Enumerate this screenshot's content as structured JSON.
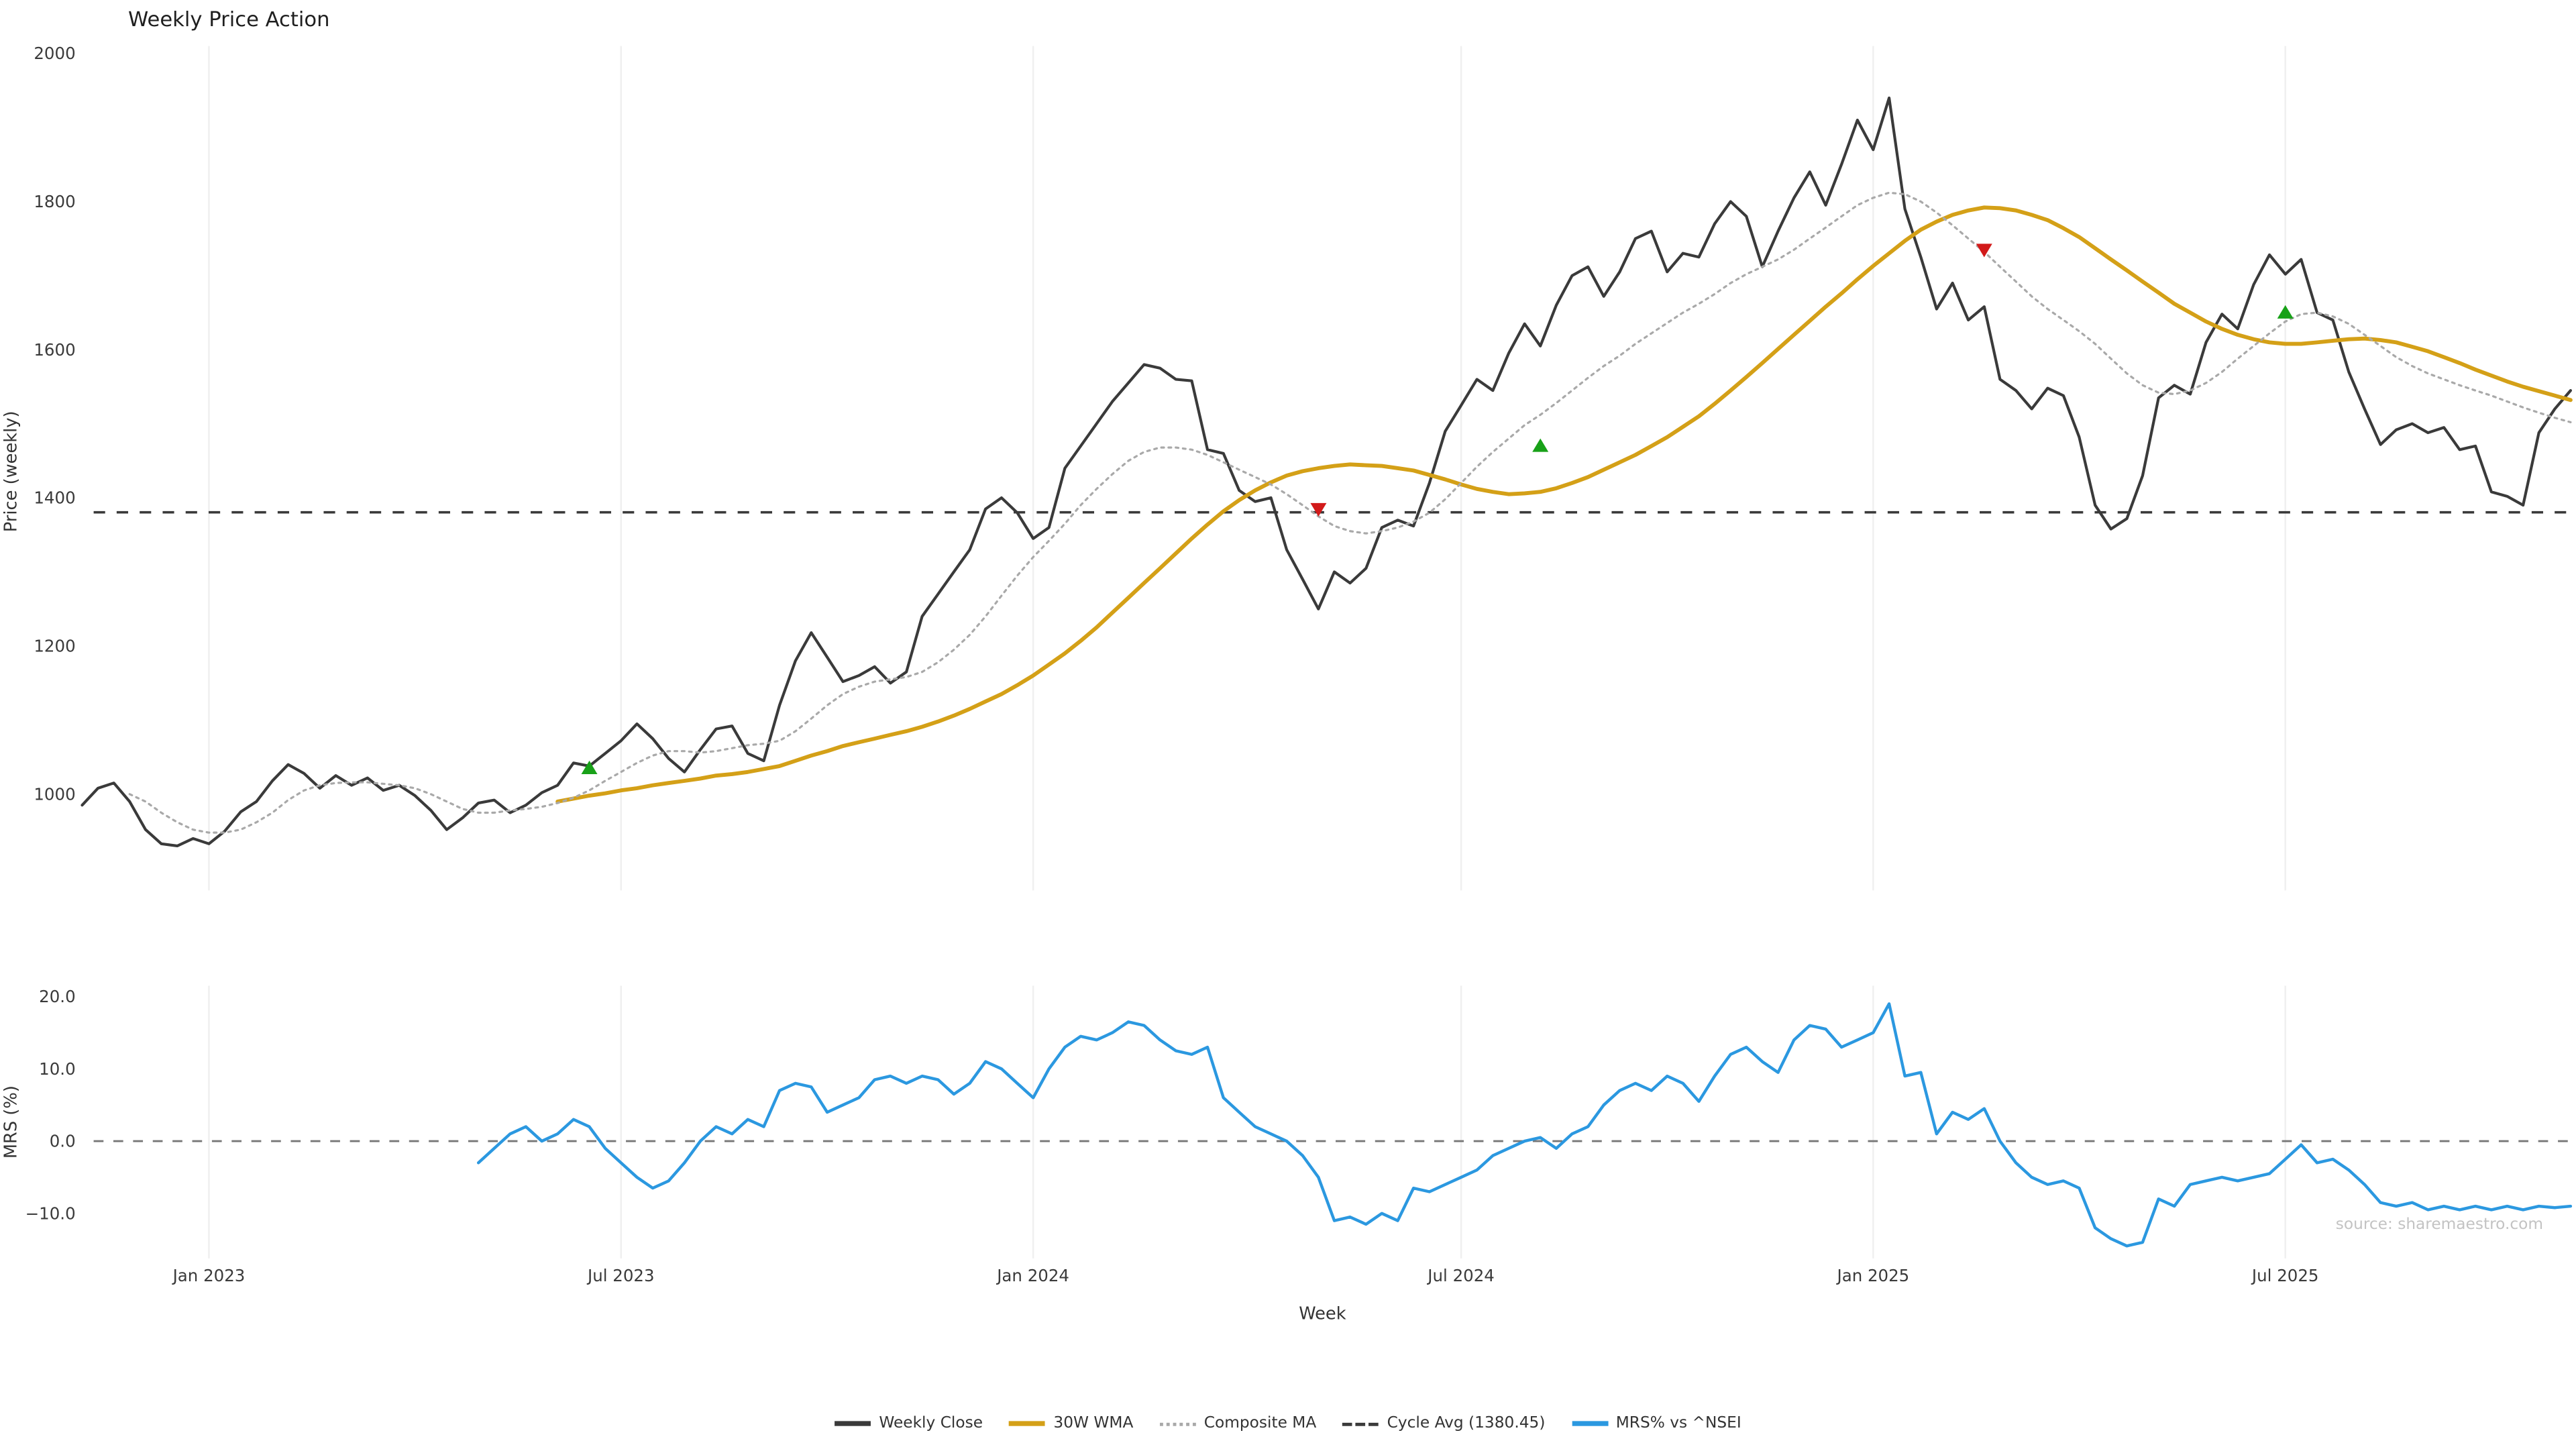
{
  "watermark": "source: sharemaestro.com",
  "legend": [
    {
      "label": "Weekly Close",
      "color": "#3a3a3a",
      "style": "solid"
    },
    {
      "label": "30W WMA",
      "color": "#d4a017",
      "style": "solid"
    },
    {
      "label": "Composite MA",
      "color": "#a9a9a9",
      "style": "dotted"
    },
    {
      "label": "Cycle Avg (1380.45)",
      "color": "#3a3a3a",
      "style": "dashed"
    },
    {
      "label": "MRS% vs ^NSEI",
      "color": "#2b98e0",
      "style": "solid"
    }
  ],
  "chart_data": [
    {
      "type": "line",
      "panel": "price",
      "title": "Weekly Price Action",
      "ylabel": "Price (weekly)",
      "xlabel": "Week",
      "x_unit": "week",
      "ylim": [
        870,
        2010
      ],
      "yticks": [
        1000,
        1200,
        1400,
        1600,
        1800,
        2000
      ],
      "xticks": [
        8,
        34,
        60,
        87,
        113,
        139
      ],
      "xtick_labels": [
        "Jan 2023",
        "Jul 2023",
        "Jan 2024",
        "Jul 2024",
        "Jan 2025",
        "Jul 2025"
      ],
      "grid": "vertical-light",
      "cycle_avg": 1380.45,
      "cycle_color": "#3a3a3a",
      "series": [
        {
          "name": "Weekly Close",
          "color": "#3a3a3a",
          "style": "solid",
          "width": 1.7,
          "start_week": 0,
          "values": [
            985,
            1008,
            1015,
            990,
            952,
            933,
            930,
            940,
            933,
            950,
            976,
            990,
            1018,
            1040,
            1028,
            1008,
            1025,
            1012,
            1022,
            1005,
            1012,
            998,
            978,
            952,
            968,
            988,
            992,
            975,
            985,
            1002,
            1012,
            1042,
            1038,
            1055,
            1072,
            1095,
            1075,
            1048,
            1030,
            1060,
            1088,
            1092,
            1055,
            1045,
            1120,
            1180,
            1218,
            1185,
            1152,
            1160,
            1172,
            1150,
            1165,
            1240,
            1270,
            1300,
            1330,
            1385,
            1400,
            1380,
            1345,
            1360,
            1440,
            1470,
            1500,
            1530,
            1555,
            1580,
            1575,
            1560,
            1558,
            1465,
            1460,
            1410,
            1395,
            1400,
            1330,
            1290,
            1250,
            1300,
            1285,
            1305,
            1360,
            1370,
            1362,
            1420,
            1490,
            1525,
            1560,
            1545,
            1595,
            1635,
            1605,
            1660,
            1700,
            1712,
            1672,
            1705,
            1750,
            1760,
            1705,
            1730,
            1725,
            1770,
            1800,
            1780,
            1712,
            1760,
            1805,
            1840,
            1795,
            1850,
            1910,
            1870,
            1940,
            1790,
            1725,
            1655,
            1690,
            1640,
            1658,
            1560,
            1545,
            1520,
            1548,
            1538,
            1482,
            1390,
            1358,
            1372,
            1430,
            1535,
            1552,
            1540,
            1610,
            1648,
            1628,
            1688,
            1728,
            1702,
            1722,
            1650,
            1640,
            1570,
            1520,
            1472,
            1492,
            1500,
            1488,
            1495,
            1465,
            1470,
            1408,
            1402,
            1390,
            1488,
            1520,
            1545
          ]
        },
        {
          "name": "30W WMA",
          "color": "#d4a017",
          "style": "solid",
          "width": 2.4,
          "start_week": 30,
          "values": [
            990,
            994,
            998,
            1001,
            1005,
            1008,
            1012,
            1015,
            1018,
            1021,
            1025,
            1027,
            1030,
            1034,
            1038,
            1045,
            1052,
            1058,
            1065,
            1070,
            1075,
            1080,
            1085,
            1091,
            1098,
            1106,
            1115,
            1125,
            1135,
            1147,
            1160,
            1175,
            1190,
            1207,
            1225,
            1245,
            1265,
            1285,
            1305,
            1325,
            1345,
            1364,
            1382,
            1397,
            1410,
            1421,
            1430,
            1436,
            1440,
            1443,
            1445,
            1444,
            1443,
            1440,
            1437,
            1431,
            1425,
            1418,
            1412,
            1408,
            1405,
            1406,
            1408,
            1413,
            1420,
            1428,
            1438,
            1448,
            1458,
            1470,
            1482,
            1496,
            1510,
            1527,
            1545,
            1563,
            1582,
            1601,
            1620,
            1639,
            1658,
            1676,
            1695,
            1713,
            1730,
            1747,
            1762,
            1773,
            1782,
            1788,
            1792,
            1791,
            1788,
            1782,
            1775,
            1764,
            1752,
            1737,
            1722,
            1707,
            1692,
            1677,
            1662,
            1650,
            1638,
            1628,
            1620,
            1614,
            1610,
            1608,
            1608,
            1610,
            1612,
            1614,
            1615,
            1613,
            1610,
            1604,
            1598,
            1590,
            1582,
            1573,
            1565,
            1557,
            1550,
            1544,
            1538,
            1532
          ]
        },
        {
          "name": "Composite MA",
          "color": "#a9a9a9",
          "style": "dotted",
          "width": 1.3,
          "start_week": 3,
          "values": [
            1000,
            990,
            975,
            962,
            952,
            948,
            948,
            952,
            962,
            975,
            992,
            1005,
            1012,
            1015,
            1016,
            1016,
            1014,
            1012,
            1008,
            1000,
            990,
            980,
            975,
            975,
            978,
            980,
            983,
            988,
            995,
            1005,
            1018,
            1030,
            1042,
            1052,
            1058,
            1058,
            1056,
            1058,
            1062,
            1066,
            1068,
            1072,
            1085,
            1102,
            1120,
            1135,
            1145,
            1152,
            1155,
            1158,
            1165,
            1178,
            1195,
            1215,
            1240,
            1268,
            1295,
            1320,
            1342,
            1365,
            1390,
            1412,
            1432,
            1450,
            1462,
            1468,
            1468,
            1465,
            1458,
            1448,
            1438,
            1428,
            1418,
            1405,
            1390,
            1375,
            1362,
            1355,
            1352,
            1355,
            1360,
            1368,
            1380,
            1398,
            1420,
            1442,
            1462,
            1480,
            1498,
            1512,
            1528,
            1545,
            1562,
            1578,
            1592,
            1608,
            1622,
            1636,
            1650,
            1662,
            1675,
            1690,
            1702,
            1712,
            1722,
            1735,
            1750,
            1765,
            1780,
            1795,
            1805,
            1812,
            1810,
            1800,
            1785,
            1768,
            1750,
            1732,
            1712,
            1692,
            1672,
            1655,
            1640,
            1625,
            1608,
            1588,
            1568,
            1552,
            1542,
            1540,
            1545,
            1555,
            1570,
            1588,
            1605,
            1622,
            1638,
            1648,
            1650,
            1645,
            1635,
            1620,
            1605,
            1590,
            1578,
            1568,
            1560,
            1552,
            1545,
            1538,
            1530,
            1522,
            1515,
            1508,
            1502
          ]
        }
      ],
      "markers": {
        "buy_color": "#18a118",
        "sell_color": "#d21a1a",
        "buy": [
          {
            "week": 32,
            "price": 1035
          },
          {
            "week": 92,
            "price": 1470
          },
          {
            "week": 139,
            "price": 1650
          }
        ],
        "sell": [
          {
            "week": 78,
            "price": 1385
          },
          {
            "week": 120,
            "price": 1735
          }
        ]
      }
    },
    {
      "type": "line",
      "panel": "mrs",
      "ylabel": "MRS (%)",
      "ylim": [
        -17,
        21.5
      ],
      "ytick_values": [
        20,
        10,
        0,
        -10
      ],
      "ytick_labels": [
        "20.0",
        "10.0",
        "0.0",
        "−10.0"
      ],
      "zero_line": 0,
      "series": [
        {
          "name": "MRS% vs ^NSEI",
          "color": "#2b98e0",
          "style": "solid",
          "width": 1.8,
          "start_week": 25,
          "values": [
            -3,
            -1,
            1,
            2,
            0,
            1,
            3,
            2,
            -1,
            -3,
            -5,
            -6.5,
            -5.5,
            -3,
            0,
            2,
            1,
            3,
            2,
            7,
            8,
            7.5,
            4,
            5,
            6,
            8.5,
            9,
            8,
            9,
            8.5,
            6.5,
            8,
            11,
            10,
            8,
            6,
            10,
            13,
            14.5,
            14,
            15,
            16.5,
            16,
            14,
            12.5,
            12,
            13,
            6,
            4,
            2,
            1,
            0,
            -2,
            -5,
            -11,
            -10.5,
            -11.5,
            -10,
            -11,
            -6.5,
            -7,
            -6,
            -5,
            -4,
            -2,
            -1,
            0,
            0.5,
            -1,
            1,
            2,
            5,
            7,
            8,
            7,
            9,
            8,
            5.5,
            9,
            12,
            13,
            11,
            9.5,
            14,
            16,
            15.5,
            13,
            14,
            15,
            19,
            9,
            9.5,
            1,
            4,
            3,
            4.5,
            0,
            -3,
            -5,
            -6,
            -5.5,
            -6.5,
            -12,
            -13.5,
            -14.5,
            -14,
            -8,
            -9,
            -6,
            -5.5,
            -5,
            -5.5,
            -5,
            -4.5,
            -2.5,
            -0.5,
            -3,
            -2.5,
            -4,
            -6,
            -8.5,
            -9,
            -8.5,
            -9.5,
            -9,
            -9.5,
            -9,
            -9.5,
            -9,
            -9.5,
            -9,
            -9.2,
            -9
          ]
        }
      ]
    }
  ]
}
